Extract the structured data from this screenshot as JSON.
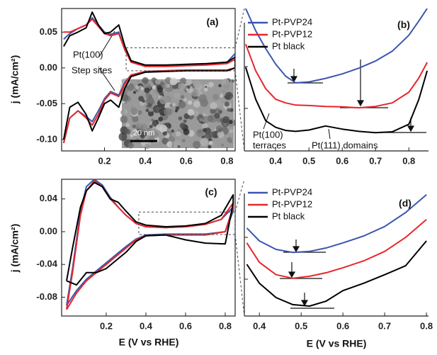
{
  "chart_data": [
    {
      "type": "line",
      "panel_label": "(a)",
      "ylabel": "j (mA/cm²)",
      "xlim": [
        -0.01,
        0.84
      ],
      "ylim": [
        -0.116,
        0.083
      ],
      "xticks": [
        0.2,
        0.4,
        0.6,
        0.8
      ],
      "yticks": [
        0.05,
        {
          "value": 0,
          "label": "0.00"
        },
        -0.05,
        {
          "value": -0.1,
          "label": "-0.10"
        }
      ],
      "annotations": [
        "Pt(100)",
        "Step sites"
      ],
      "inset_label": "20 nm",
      "x": [
        0.0,
        0.03,
        0.07,
        0.11,
        0.14,
        0.17,
        0.2,
        0.23,
        0.27,
        0.3,
        0.33,
        0.4,
        0.5,
        0.6,
        0.7,
        0.8,
        0.84,
        0.84,
        0.8,
        0.7,
        0.6,
        0.5,
        0.4,
        0.33,
        0.3,
        0.27,
        0.23,
        0.2,
        0.17,
        0.14,
        0.11,
        0.07,
        0.03,
        0.0
      ],
      "series": [
        {
          "color": "#3a56b0",
          "values": [
            0.04,
            0.048,
            0.055,
            0.06,
            0.07,
            0.06,
            0.05,
            0.047,
            0.05,
            0.025,
            0.009,
            0.003,
            0.003,
            0.004,
            0.005,
            0.008,
            0.02,
            0.0,
            -0.003,
            -0.003,
            -0.003,
            -0.004,
            -0.005,
            -0.01,
            -0.02,
            -0.038,
            -0.033,
            -0.043,
            -0.06,
            -0.075,
            -0.068,
            -0.06,
            -0.07,
            -0.105
          ]
        },
        {
          "color": "#e8262b",
          "values": [
            0.05,
            0.05,
            0.055,
            0.06,
            0.068,
            0.058,
            0.048,
            0.045,
            0.048,
            0.025,
            0.008,
            0.002,
            0.002,
            0.003,
            0.004,
            0.006,
            0.012,
            0.0,
            -0.003,
            -0.003,
            -0.003,
            -0.004,
            -0.005,
            -0.01,
            -0.022,
            -0.04,
            -0.035,
            -0.045,
            -0.065,
            -0.08,
            -0.07,
            -0.06,
            -0.07,
            -0.105
          ]
        },
        {
          "color": "#000000",
          "values": [
            0.03,
            0.045,
            0.05,
            0.056,
            0.078,
            0.06,
            0.048,
            0.05,
            0.06,
            0.03,
            0.01,
            0.004,
            0.004,
            0.005,
            0.006,
            0.008,
            0.015,
            0.0,
            -0.004,
            -0.004,
            -0.004,
            -0.005,
            -0.006,
            -0.012,
            -0.028,
            -0.055,
            -0.045,
            -0.05,
            -0.07,
            -0.088,
            -0.065,
            -0.048,
            -0.055,
            -0.1
          ]
        }
      ]
    },
    {
      "type": "line",
      "panel_label": "(b)",
      "xlim": [
        0.306,
        0.859
      ],
      "ylim": [
        -0.004,
        0.028
      ],
      "xticks": [
        0.4,
        0.5,
        0.6,
        0.7,
        0.8
      ],
      "annotations": [
        "Pt(100)",
        "terraces",
        "Pt(111) domains"
      ],
      "x": [
        0.31,
        0.34,
        0.37,
        0.4,
        0.43,
        0.46,
        0.5,
        0.55,
        0.6,
        0.65,
        0.7,
        0.75,
        0.8,
        0.83,
        0.855
      ],
      "series": [
        {
          "name": "Pt-PVP24",
          "color": "#3a56b0",
          "values": [
            0.028,
            0.023,
            0.019,
            0.0155,
            0.0128,
            0.0113,
            0.0115,
            0.0123,
            0.0133,
            0.0146,
            0.0162,
            0.0184,
            0.022,
            0.0252,
            0.028
          ]
        },
        {
          "name": "Pt-PVP12",
          "color": "#e8262b",
          "values": [
            0.02,
            0.014,
            0.01,
            0.0076,
            0.0068,
            0.0063,
            0.0062,
            0.006,
            0.0059,
            0.0057,
            0.006,
            0.0068,
            0.0092,
            0.0124,
            0.0159
          ]
        },
        {
          "name": "Pt black",
          "color": "#000000",
          "values": [
            0.0148,
            0.0076,
            0.0028,
            0.0013,
            0.0006,
            0.0004,
            0.0007,
            0.0016,
            0.0009,
            0.0004,
            0.0001,
            0.0003,
            0.002,
            0.0076,
            0.014
          ]
        }
      ]
    },
    {
      "type": "line",
      "panel_label": "(c)",
      "ylabel": "j (mA/cm²)",
      "xlabel": "E (V vs RHE)",
      "xlim": [
        -0.025,
        0.85
      ],
      "ylim": [
        -0.103,
        0.064
      ],
      "xticks": [
        0.2,
        0.4,
        0.6,
        0.8
      ],
      "yticks": [
        0.04,
        {
          "value": 0,
          "label": "0.00"
        },
        -0.04,
        -0.08
      ],
      "x": [
        0.0,
        0.03,
        0.07,
        0.1,
        0.14,
        0.18,
        0.22,
        0.26,
        0.3,
        0.35,
        0.4,
        0.5,
        0.6,
        0.7,
        0.78,
        0.84,
        0.84,
        0.8,
        0.7,
        0.6,
        0.5,
        0.4,
        0.35,
        0.3,
        0.25,
        0.2,
        0.15,
        0.1,
        0.05,
        0.0
      ],
      "series": [
        {
          "color": "#3a56b0",
          "values": [
            -0.09,
            -0.045,
            0.025,
            0.055,
            0.064,
            0.057,
            0.042,
            0.03,
            0.02,
            0.01,
            0.006,
            0.005,
            0.006,
            0.009,
            0.015,
            0.03,
            0.025,
            0.0,
            -0.003,
            -0.003,
            -0.003,
            -0.004,
            -0.009,
            -0.018,
            -0.028,
            -0.038,
            -0.048,
            -0.058,
            -0.072,
            -0.09
          ]
        },
        {
          "color": "#e8262b",
          "values": [
            -0.095,
            -0.05,
            0.02,
            0.05,
            0.062,
            0.055,
            0.04,
            0.03,
            0.02,
            0.01,
            0.006,
            0.005,
            0.006,
            0.009,
            0.015,
            0.035,
            0.03,
            0.0,
            -0.004,
            -0.004,
            -0.004,
            -0.005,
            -0.01,
            -0.02,
            -0.03,
            -0.04,
            -0.05,
            -0.06,
            -0.075,
            -0.095
          ]
        },
        {
          "color": "#000000",
          "values": [
            -0.06,
            -0.02,
            0.03,
            0.05,
            0.06,
            0.055,
            0.04,
            0.036,
            0.025,
            0.012,
            0.008,
            0.006,
            0.007,
            0.01,
            0.02,
            0.045,
            0.035,
            -0.015,
            -0.014,
            -0.01,
            -0.004,
            -0.005,
            -0.012,
            -0.025,
            -0.035,
            -0.045,
            -0.05,
            -0.05,
            -0.065,
            -0.06
          ]
        }
      ]
    },
    {
      "type": "line",
      "panel_label": "(d)",
      "xlabel": "E (V vs RHE)",
      "xlim": [
        0.364,
        0.805
      ],
      "ylim": [
        -0.0035,
        0.024
      ],
      "xticks": [
        0.4,
        0.5,
        0.6,
        0.7,
        0.8
      ],
      "x": [
        0.37,
        0.4,
        0.44,
        0.48,
        0.52,
        0.56,
        0.6,
        0.65,
        0.7,
        0.75,
        0.8
      ],
      "series": [
        {
          "name": "Pt-PVP24",
          "color": "#3a56b0",
          "values": [
            0.0142,
            0.0116,
            0.0099,
            0.0093,
            0.0095,
            0.0102,
            0.0112,
            0.0126,
            0.0145,
            0.0173,
            0.0209
          ]
        },
        {
          "name": "Pt-PVP12",
          "color": "#e8262b",
          "values": [
            0.0112,
            0.0073,
            0.0048,
            0.0041,
            0.0045,
            0.0052,
            0.0062,
            0.0076,
            0.0095,
            0.0123,
            0.0159
          ]
        },
        {
          "name": "Pt black",
          "color": "#000000",
          "values": [
            0.0069,
            0.0031,
            0.0002,
            -0.0012,
            -0.0015,
            -0.0005,
            0.0016,
            0.0031,
            0.0048,
            0.0066,
            0.0116
          ]
        }
      ]
    }
  ]
}
